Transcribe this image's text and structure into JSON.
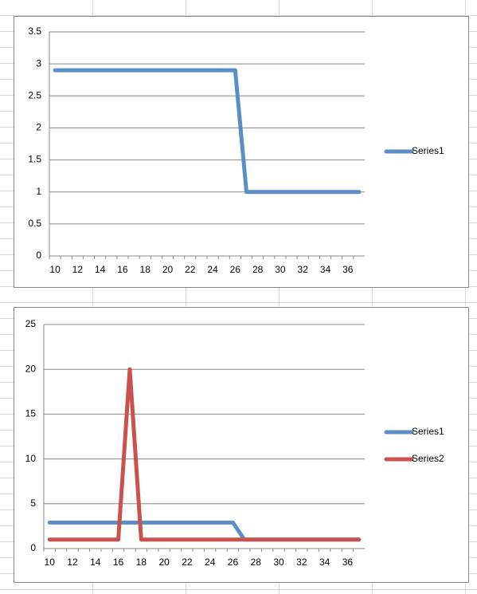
{
  "chart_data": [
    {
      "type": "line",
      "categories": [
        "10",
        null,
        "12",
        null,
        "14",
        null,
        "16",
        null,
        "18",
        null,
        "20",
        null,
        "22",
        null,
        "24",
        null,
        "26",
        null,
        "28",
        null,
        "30",
        null,
        "32",
        null,
        "34",
        null,
        "36",
        null
      ],
      "series": [
        {
          "name": "Series1",
          "color": "#5b8ec6",
          "values": [
            2.9,
            2.9,
            2.9,
            2.9,
            2.9,
            2.9,
            2.9,
            2.9,
            2.9,
            2.9,
            2.9,
            2.9,
            2.9,
            2.9,
            2.9,
            2.9,
            2.9,
            1,
            1,
            1,
            1,
            1,
            1,
            1,
            1,
            1,
            1,
            1
          ]
        }
      ],
      "ylim": [
        0,
        3.5
      ],
      "yticks": [
        0,
        0.5,
        1,
        1.5,
        2,
        2.5,
        3,
        3.5
      ],
      "grid": true,
      "legend": "right"
    },
    {
      "type": "line",
      "categories": [
        "10",
        null,
        "12",
        null,
        "14",
        null,
        "16",
        null,
        "18",
        null,
        "20",
        null,
        "22",
        null,
        "24",
        null,
        "26",
        null,
        "28",
        null,
        "30",
        null,
        "32",
        null,
        "34",
        null,
        "36",
        null
      ],
      "series": [
        {
          "name": "Series1",
          "color": "#5b8ec6",
          "values": [
            2.9,
            2.9,
            2.9,
            2.9,
            2.9,
            2.9,
            2.9,
            2.9,
            2.9,
            2.9,
            2.9,
            2.9,
            2.9,
            2.9,
            2.9,
            2.9,
            2.9,
            1,
            1,
            1,
            1,
            1,
            1,
            1,
            1,
            1,
            1,
            1
          ]
        },
        {
          "name": "Series2",
          "color": "#c9524e",
          "values": [
            1,
            1,
            1,
            1,
            1,
            1,
            1,
            20,
            1,
            1,
            1,
            1,
            1,
            1,
            1,
            1,
            1,
            1,
            1,
            1,
            1,
            1,
            1,
            1,
            1,
            1,
            1,
            1
          ]
        }
      ],
      "ylim": [
        0,
        25
      ],
      "yticks": [
        0,
        5,
        10,
        15,
        20,
        25
      ],
      "grid": true,
      "legend": "right"
    }
  ]
}
